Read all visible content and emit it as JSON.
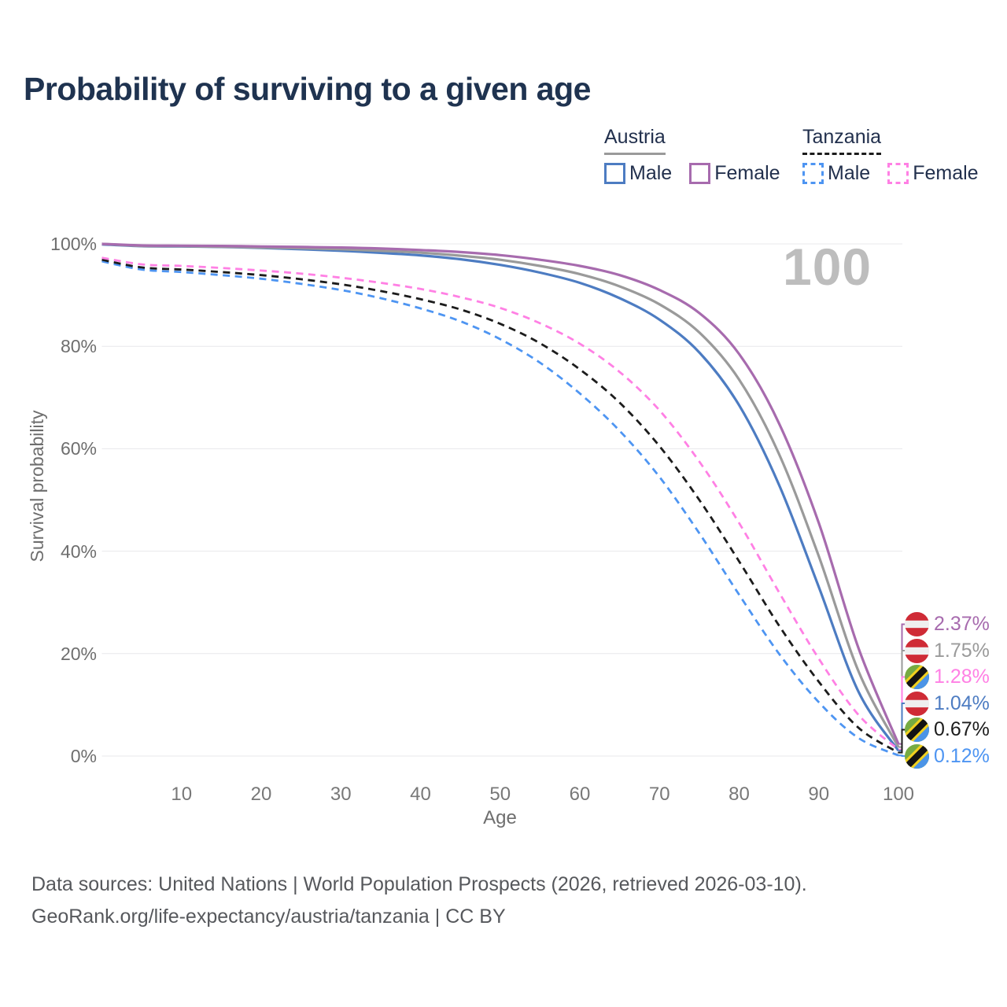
{
  "title": "Probability of surviving to a given age",
  "watermark": "100",
  "legend": {
    "groups": [
      {
        "label": "Austria",
        "underline_style": "solid",
        "underline_color": "#9a9a9a",
        "items": [
          {
            "label": "Male",
            "color": "#4d7cc2",
            "border_style": "solid"
          },
          {
            "label": "Female",
            "color": "#a76bae",
            "border_style": "solid"
          }
        ]
      },
      {
        "label": "Tanzania",
        "underline_style": "dashed",
        "underline_color": "#1c1c1c",
        "items": [
          {
            "label": "Male",
            "color": "#4e95f2",
            "border_style": "dashed"
          },
          {
            "label": "Female",
            "color": "#ff80e4",
            "border_style": "dashed"
          }
        ]
      }
    ]
  },
  "chart_data": {
    "type": "line",
    "title": "Probability of surviving to a given age",
    "xlabel": "Age",
    "ylabel": "Survival probability",
    "xlim": [
      0,
      100
    ],
    "ylim": [
      0,
      100
    ],
    "grid": "horizontal",
    "xticks": [
      "10",
      "20",
      "30",
      "40",
      "50",
      "60",
      "70",
      "80",
      "90",
      "100"
    ],
    "yticks": [
      "0%",
      "20%",
      "40%",
      "60%",
      "80%",
      "100%"
    ],
    "x": [
      0,
      5,
      10,
      15,
      20,
      25,
      30,
      35,
      40,
      45,
      50,
      55,
      60,
      65,
      70,
      75,
      80,
      85,
      90,
      95,
      100
    ],
    "series": [
      {
        "name": "Austria Female",
        "country": "austria",
        "sex": "Female",
        "color": "#a76bae",
        "dashed": false,
        "end_label": "2.37%",
        "values": [
          100,
          99.7,
          99.65,
          99.6,
          99.5,
          99.4,
          99.3,
          99.1,
          98.8,
          98.4,
          97.8,
          96.9,
          95.7,
          93.9,
          91.0,
          86.5,
          78.5,
          65.0,
          45.5,
          21.0,
          2.37
        ]
      },
      {
        "name": "Austria Both sexes",
        "country": "austria",
        "sex": "Both",
        "color": "#9a9a9a",
        "dashed": false,
        "end_label": "1.75%",
        "values": [
          100,
          99.6,
          99.55,
          99.45,
          99.3,
          99.15,
          98.95,
          98.65,
          98.3,
          97.7,
          96.9,
          95.7,
          94.1,
          91.7,
          88.2,
          82.7,
          73.5,
          59.0,
          39.0,
          16.5,
          1.75
        ]
      },
      {
        "name": "Tanzania Female",
        "country": "tanzania",
        "sex": "Female",
        "color": "#ff80e4",
        "dashed": true,
        "end_label": "1.28%",
        "values": [
          97.3,
          96.0,
          95.7,
          95.3,
          94.8,
          94.2,
          93.4,
          92.4,
          91.2,
          89.6,
          87.5,
          84.5,
          80.5,
          75.0,
          67.5,
          57.5,
          45.5,
          32.0,
          19.0,
          8.0,
          1.28
        ]
      },
      {
        "name": "Austria Male",
        "country": "austria",
        "sex": "Male",
        "color": "#4d7cc2",
        "dashed": false,
        "end_label": "1.04%",
        "values": [
          99.9,
          99.55,
          99.5,
          99.4,
          99.2,
          98.95,
          98.65,
          98.25,
          97.75,
          97.0,
          95.9,
          94.4,
          92.4,
          89.4,
          85.2,
          78.8,
          68.5,
          53.0,
          33.0,
          12.5,
          1.04
        ]
      },
      {
        "name": "Tanzania Both sexes",
        "country": "tanzania",
        "sex": "Both",
        "color": "#1c1c1c",
        "dashed": true,
        "end_label": "0.67%",
        "values": [
          96.9,
          95.4,
          95.0,
          94.5,
          93.9,
          93.1,
          92.1,
          90.8,
          89.2,
          87.2,
          84.4,
          80.6,
          75.5,
          69.0,
          60.5,
          50.0,
          38.0,
          25.5,
          14.5,
          5.5,
          0.67
        ]
      },
      {
        "name": "Tanzania Male",
        "country": "tanzania",
        "sex": "Male",
        "color": "#4e95f2",
        "dashed": true,
        "end_label": "0.12%",
        "values": [
          96.6,
          95.0,
          94.5,
          93.9,
          93.2,
          92.2,
          91.0,
          89.4,
          87.4,
          84.9,
          81.4,
          76.8,
          70.8,
          63.5,
          54.5,
          43.5,
          31.5,
          20.0,
          10.5,
          3.5,
          0.12
        ]
      }
    ]
  },
  "footer": {
    "line1": "Data sources: United Nations | World Population Prospects (2026, retrieved 2026-03-10).",
    "line2": "GeoRank.org/life-expectancy/austria/tanzania | CC BY"
  }
}
